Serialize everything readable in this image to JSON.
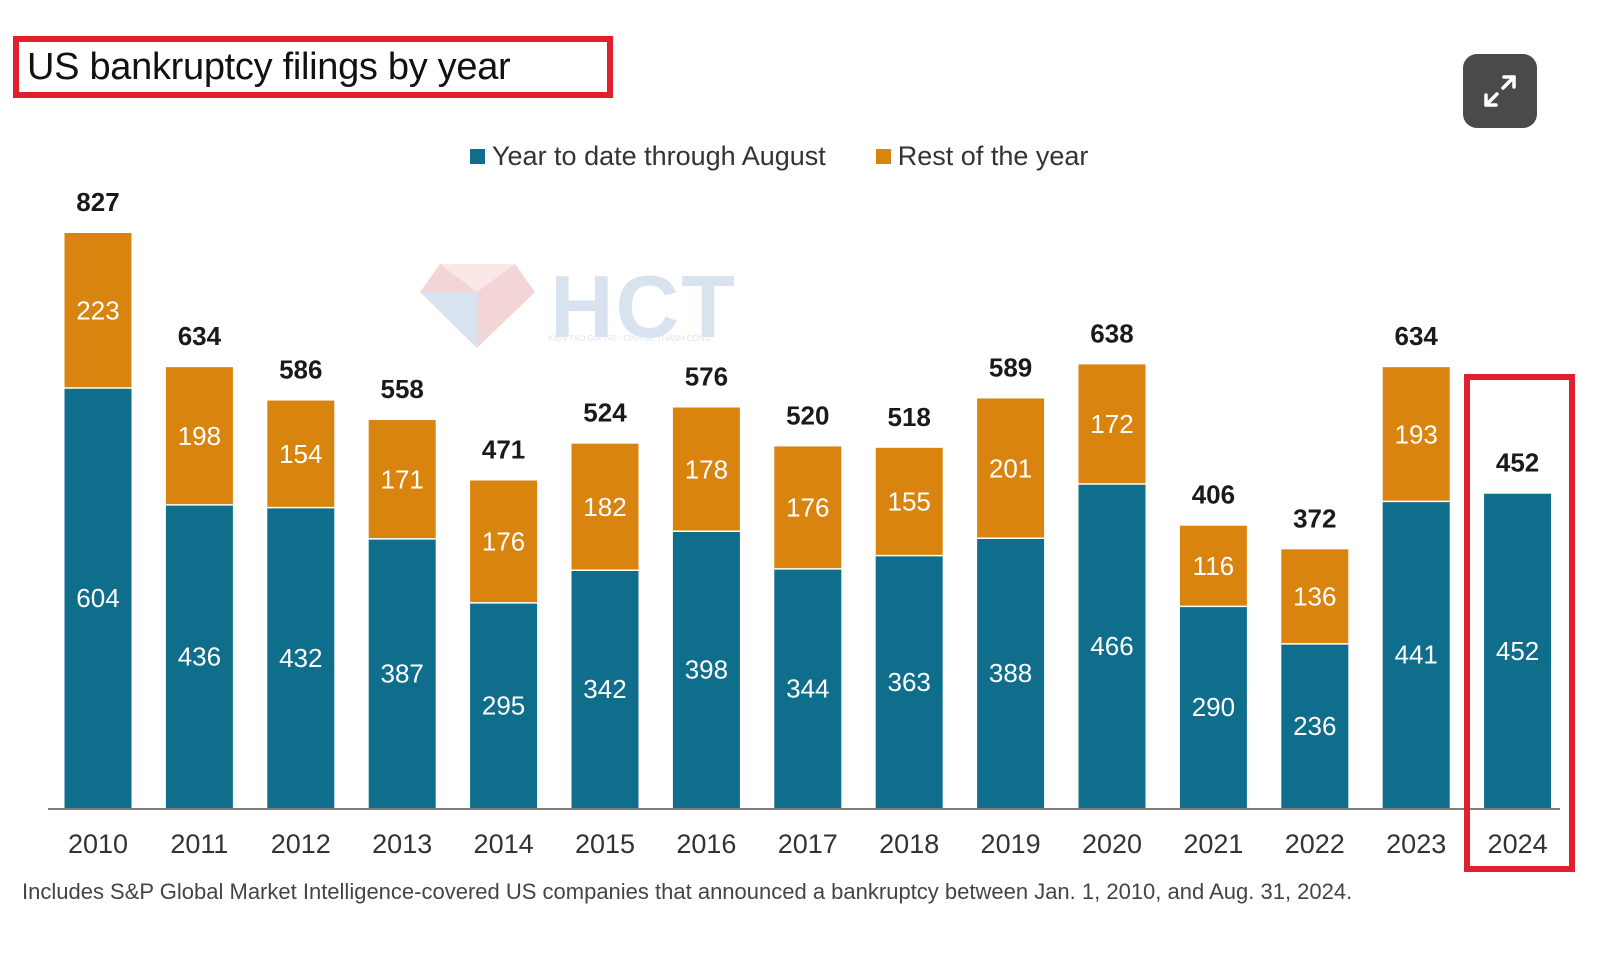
{
  "chart_data": {
    "type": "bar",
    "stacked": true,
    "title": "US bankruptcy filings by year",
    "xlabel": "",
    "ylabel": "",
    "ylim": [
      0,
      900
    ],
    "grid": false,
    "legend_position": "top-center",
    "categories": [
      "2010",
      "2011",
      "2012",
      "2013",
      "2014",
      "2015",
      "2016",
      "2017",
      "2018",
      "2019",
      "2020",
      "2021",
      "2022",
      "2023",
      "2024"
    ],
    "series": [
      {
        "name": "Year to date through August",
        "color": "#0f6e8c",
        "values": [
          604,
          436,
          432,
          387,
          295,
          342,
          398,
          344,
          363,
          388,
          466,
          290,
          236,
          441,
          452
        ]
      },
      {
        "name": "Rest of the year",
        "color": "#d9840e",
        "values": [
          223,
          198,
          154,
          171,
          176,
          182,
          178,
          176,
          155,
          201,
          172,
          116,
          136,
          193,
          null
        ]
      }
    ],
    "totals": [
      827,
      634,
      586,
      558,
      471,
      524,
      576,
      520,
      518,
      589,
      638,
      406,
      372,
      634,
      452
    ],
    "highlighted_category": "2024",
    "footnote": "Includes S&P Global Market Intelligence-covered US companies that announced a bankruptcy between Jan. 1, 2010, and Aug. 31, 2024."
  },
  "ui": {
    "expand_icon": "expand-arrows-icon",
    "watermark_text": "HCT",
    "watermark_tagline": "KIẾN TẠO GIÁ TRỊ - CHIA SẺ THÀNH CÔNG",
    "colors": {
      "highlight_border": "#e0202c",
      "axis": "#555555"
    }
  }
}
